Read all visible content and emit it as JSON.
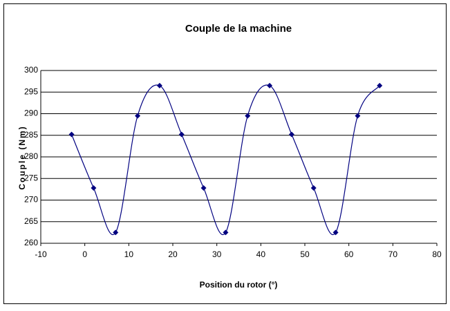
{
  "chart_data": {
    "type": "line",
    "title": "Couple de la machine",
    "x_label": "Position du rotor (°)",
    "y_label": "Couple (Nm)",
    "x": [
      -3,
      2,
      7,
      12,
      17,
      22,
      27,
      32,
      37,
      42,
      47,
      52,
      57,
      62,
      67
    ],
    "series": [
      {
        "name": "Couple",
        "color": "#000080",
        "values": [
          285.2,
          272.8,
          262.5,
          289.5,
          296.5,
          285.2,
          272.8,
          262.5,
          289.5,
          296.5,
          285.2,
          272.8,
          262.5,
          289.5,
          296.5
        ]
      }
    ],
    "xlim": [
      -10,
      80
    ],
    "xticks": [
      -10,
      0,
      10,
      20,
      30,
      40,
      50,
      60,
      70,
      80
    ],
    "ylim": [
      260,
      300
    ],
    "yticks": [
      260,
      265,
      270,
      275,
      280,
      285,
      290,
      295,
      300
    ],
    "grid": true,
    "smooth": true
  }
}
